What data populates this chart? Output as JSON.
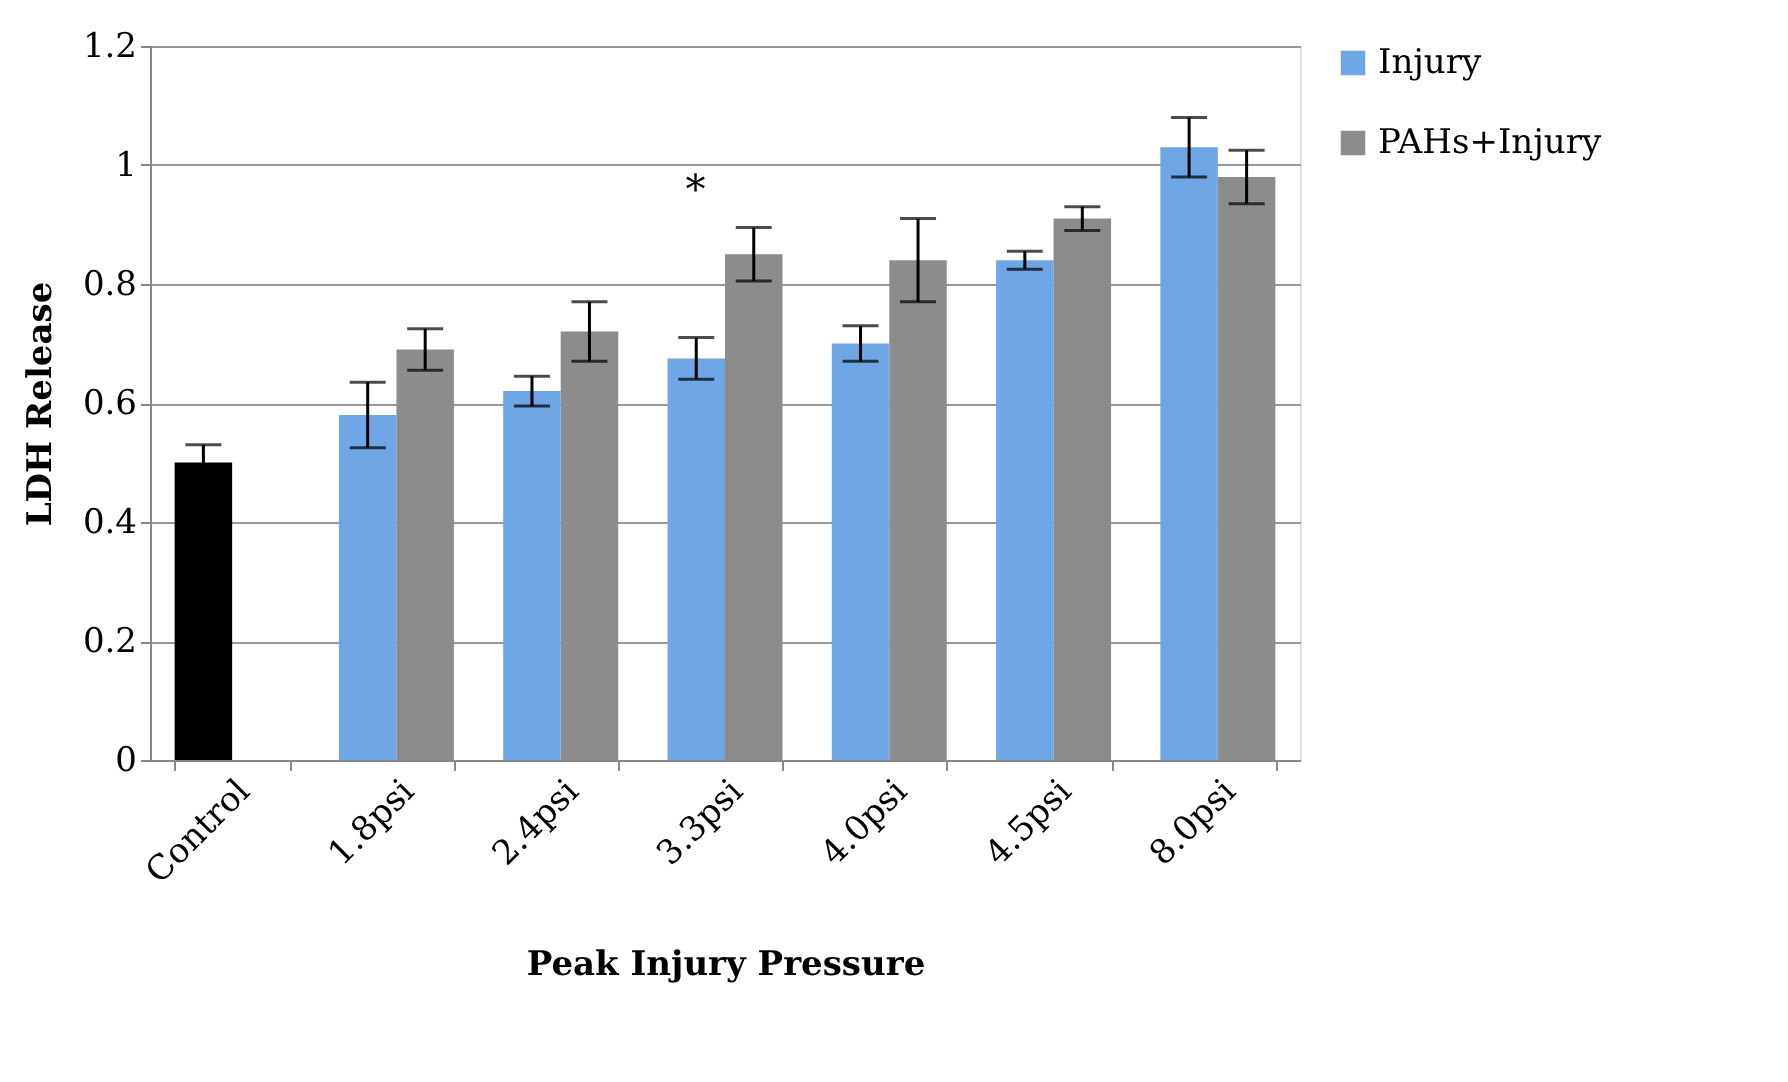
{
  "chart_data": {
    "type": "bar",
    "xlabel": "Peak Injury Pressure",
    "ylabel": "LDH Release",
    "categories": [
      "Control",
      "1.8psi",
      "2.4psi",
      "3.3psi",
      "4.0psi",
      "4.5psi",
      "8.0psi"
    ],
    "series": [
      {
        "name": "Injury",
        "color": "#6fa6e6",
        "colors": [
          "#000000",
          "#6fa6e6",
          "#6fa6e6",
          "#6fa6e6",
          "#6fa6e6",
          "#6fa6e6",
          "#6fa6e6"
        ],
        "values": [
          0.5,
          0.58,
          0.62,
          0.675,
          0.7,
          0.84,
          1.03
        ],
        "errors": [
          0.03,
          0.055,
          0.025,
          0.035,
          0.03,
          0.015,
          0.05
        ]
      },
      {
        "name": "PAHs+Injury",
        "color": "#8c8c8c",
        "values": [
          0,
          0.69,
          0.72,
          0.85,
          0.84,
          0.91,
          0.98
        ],
        "errors": [
          null,
          0.035,
          0.05,
          0.045,
          0.07,
          0.02,
          0.045
        ]
      }
    ],
    "annotations": [
      {
        "text": "*",
        "x": "3.3psi",
        "y": 0.895
      }
    ],
    "ylim": [
      0,
      1.2
    ],
    "yticks": [
      0,
      0.2,
      0.4,
      0.6,
      0.8,
      1,
      1.2
    ],
    "grid": "y",
    "legend": "right"
  }
}
